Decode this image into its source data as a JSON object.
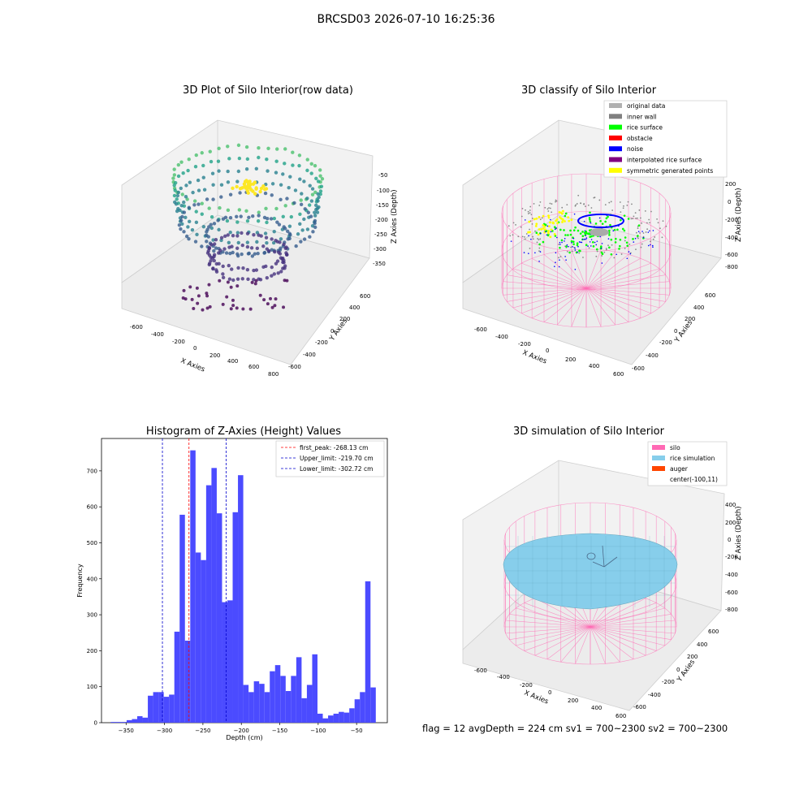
{
  "suptitle": "BRCSD03 2026-07-10 16:25:36",
  "footer": {
    "text": "flag = 12   avgDepth = 224 cm   sv1 = 700~2300   sv2 = 700~2300"
  },
  "colors": {
    "hist_bar": "#4b4bff",
    "first_peak_line": "#ff0000",
    "limit_line": "#0000cc",
    "silo": "#ff69b4",
    "rice": "#87ceeb",
    "auger": "#ff4500"
  },
  "chart_data": [
    {
      "type": "scatter",
      "projection": "3d",
      "title": "3D Plot of Silo Interior(row data)",
      "xlabel": "X Axies",
      "ylabel": "Y Axies",
      "zlabel": "Z Axies (Depth)",
      "x_ticks": [
        "-600",
        "-400",
        "-200",
        "0",
        "200",
        "400",
        "600",
        "800"
      ],
      "y_ticks": [
        "600",
        "400",
        "200",
        "0",
        "-200",
        "-400",
        "-600"
      ],
      "z_ticks": [
        "-50",
        "-100",
        "-150",
        "-200",
        "-250",
        "-300",
        "-350"
      ],
      "colormap": "viridis"
    },
    {
      "type": "scatter",
      "projection": "3d",
      "title": "3D classify of Silo Interior",
      "xlabel": "X Axies",
      "ylabel": "Y Axies",
      "zlabel": "Z Axies (Depth)",
      "x_ticks": [
        "-600",
        "-400",
        "-200",
        "0",
        "200",
        "400",
        "600"
      ],
      "y_ticks": [
        "600",
        "400",
        "200",
        "0",
        "-200",
        "-400",
        "-600"
      ],
      "z_ticks": [
        "200",
        "0",
        "-200",
        "-400",
        "-600",
        "-800"
      ],
      "legend": [
        {
          "label": "original data",
          "color": "#b0b0b0"
        },
        {
          "label": "inner wall",
          "color": "#808080"
        },
        {
          "label": "rice surface",
          "color": "#00ff00"
        },
        {
          "label": "obstacle",
          "color": "#ff0000"
        },
        {
          "label": "noise",
          "color": "#0000ff"
        },
        {
          "label": "interpolated rice surface",
          "color": "#800080"
        },
        {
          "label": "symmetric generated points",
          "color": "#ffff00"
        }
      ],
      "legend_position": "top-right"
    },
    {
      "type": "bar",
      "title": "Histogram of Z-Axies (Height) Values",
      "xlabel": "Depth (cm)",
      "ylabel": "Frequency",
      "xlim": [
        -382,
        -10
      ],
      "ylim": [
        0,
        790
      ],
      "x_ticks": [
        -350,
        -300,
        -250,
        -200,
        -150,
        -100,
        -50
      ],
      "y_ticks": [
        0,
        100,
        200,
        300,
        400,
        500,
        600,
        700
      ],
      "bin_start": -370,
      "bin_width": 6.9,
      "values": [
        2,
        2,
        2,
        7,
        10,
        18,
        14,
        75,
        85,
        85,
        72,
        78,
        253,
        578,
        228,
        757,
        473,
        452,
        660,
        708,
        582,
        335,
        340,
        585,
        688,
        105,
        85,
        115,
        108,
        85,
        143,
        160,
        130,
        88,
        130,
        182,
        68,
        105,
        190,
        25,
        12,
        20,
        25,
        30,
        28,
        40,
        65,
        85,
        393,
        98
      ],
      "lines": [
        {
          "label": "first_peak: -268.13 cm",
          "value": -268.13,
          "color": "#ff0000"
        },
        {
          "label": "Upper_limit: -219.70 cm",
          "value": -219.7,
          "color": "#0000cc"
        },
        {
          "label": "Lower_limit: -302.72 cm",
          "value": -302.72,
          "color": "#0000cc"
        }
      ],
      "legend_position": "top-right",
      "grid": false
    },
    {
      "type": "surface",
      "projection": "3d",
      "title": "3D simulation of Silo Interior",
      "xlabel": "X Axies",
      "ylabel": "Y Axies",
      "zlabel": "Z Axies (Depth)",
      "x_ticks": [
        "-600",
        "-400",
        "-200",
        "0",
        "200",
        "400",
        "600"
      ],
      "y_ticks": [
        "600",
        "400",
        "200",
        "0",
        "-200",
        "-400",
        "-600"
      ],
      "z_ticks": [
        "400",
        "200",
        "0",
        "-200",
        "-400",
        "-600",
        "-800"
      ],
      "legend": [
        {
          "label": "silo",
          "color": "#ff69b4"
        },
        {
          "label": "rice simulation",
          "color": "#87ceeb"
        },
        {
          "label": "auger",
          "color": "#ff4500"
        },
        {
          "label": "center(-100,11)",
          "color": ""
        }
      ],
      "legend_position": "top-right"
    }
  ]
}
